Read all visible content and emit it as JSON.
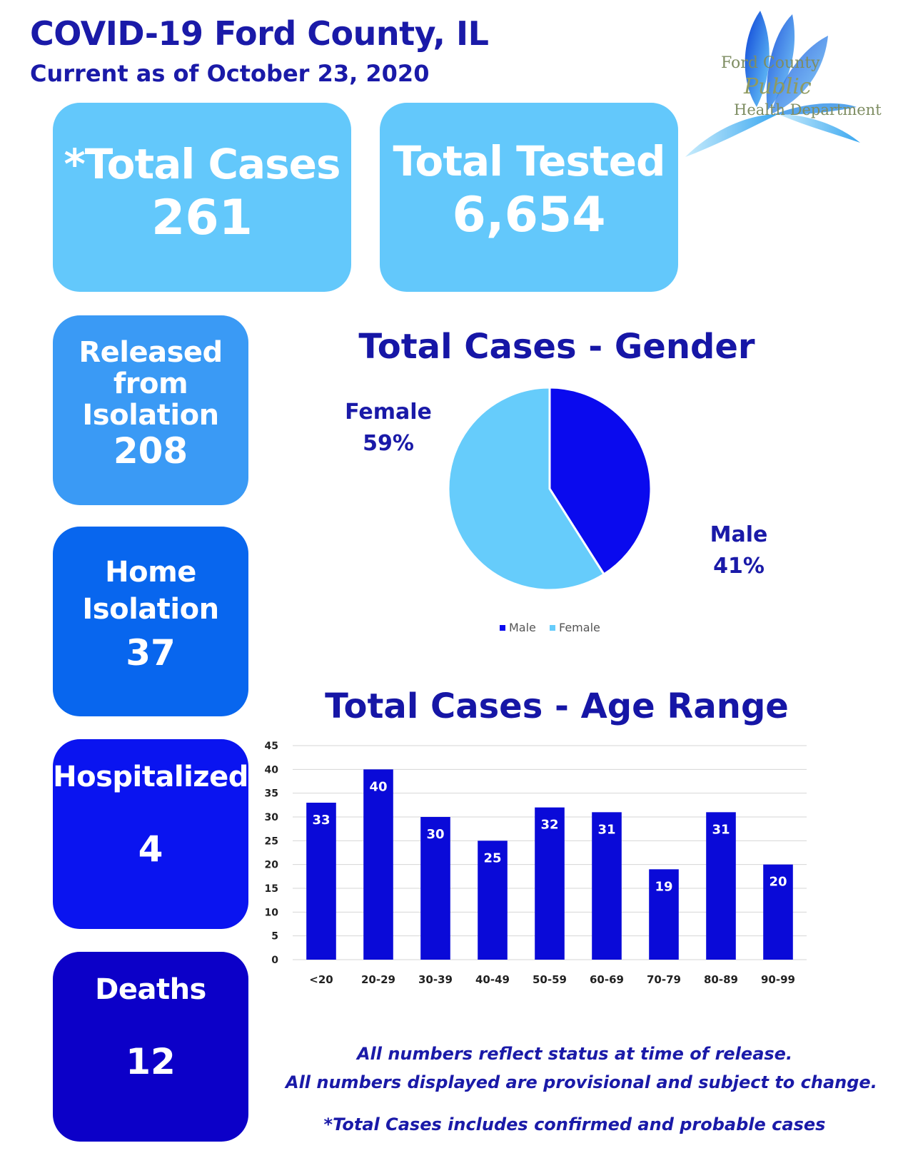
{
  "header": {
    "title": "COVID-19 Ford County, IL",
    "subtitle": "Current as of October 23, 2020"
  },
  "logo": {
    "line1": "Ford County",
    "line2": "Public",
    "line3": "Health Department"
  },
  "stats": {
    "total_cases": {
      "label": "*Total Cases",
      "value": "261"
    },
    "total_tested": {
      "label": "Total Tested",
      "value": "6,654"
    },
    "released": {
      "label_lines": [
        "Released",
        "from",
        "Isolation"
      ],
      "value": "208"
    },
    "home_isolation": {
      "label_lines": [
        "Home",
        "Isolation"
      ],
      "value": "37"
    },
    "hospitalized": {
      "label": "Hospitalized",
      "value": "4"
    },
    "deaths": {
      "label": "Deaths",
      "value": "12"
    }
  },
  "colors": {
    "total_boxes": "#63c8fb",
    "released": "#3a9af5",
    "home_isolation": "#0866ee",
    "hospitalized": "#0a14f0",
    "deaths": "#0c00c8",
    "male": "#0a0aee",
    "female": "#66ccfb",
    "bar": "#0a0ad8"
  },
  "chart_data": [
    {
      "type": "pie",
      "title": "Total Cases - Gender",
      "labels": [
        "Male",
        "Female"
      ],
      "values": [
        41,
        59
      ],
      "value_labels": [
        "41%",
        "59%"
      ],
      "legend": [
        "Male",
        "Female"
      ],
      "legend_position": "bottom"
    },
    {
      "type": "bar",
      "title": "Total Cases - Age Range",
      "categories": [
        "<20",
        "20-29",
        "30-39",
        "40-49",
        "50-59",
        "60-69",
        "70-79",
        "80-89",
        "90-99"
      ],
      "values": [
        33,
        40,
        30,
        25,
        32,
        31,
        19,
        31,
        20
      ],
      "ylim": [
        0,
        45
      ],
      "yticks": [
        0,
        5,
        10,
        15,
        20,
        25,
        30,
        35,
        40,
        45
      ],
      "grid": true
    }
  ],
  "notes": {
    "line1": "All numbers reflect status at time of release.",
    "line2": "All numbers displayed are provisional and subject to change.",
    "line3": "*Total Cases includes confirmed and probable cases"
  }
}
